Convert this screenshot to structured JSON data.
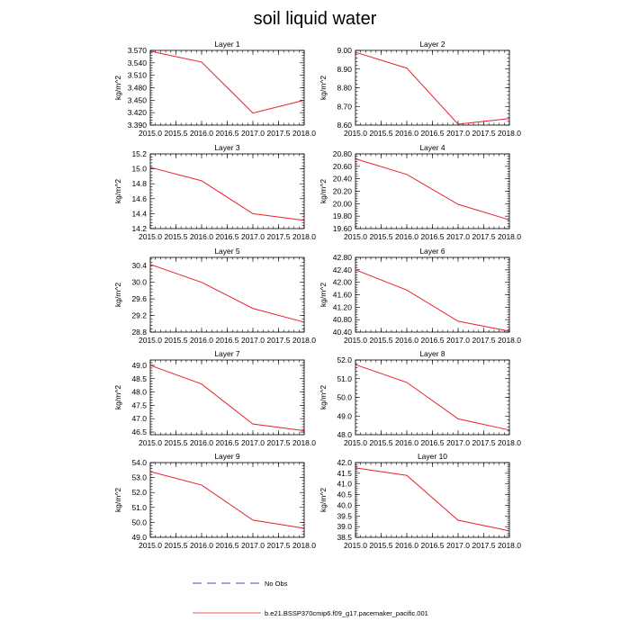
{
  "title": "soil liquid water",
  "colors": {
    "series": "#e8202a",
    "obs": "#1a1a8c",
    "axis": "#000000"
  },
  "legend": {
    "obs_label": "No Obs",
    "series_label": "b.e21.BSSP370cmip6.f09_g17.pacemaker_pacific.001"
  },
  "chart_data": [
    {
      "type": "line",
      "title": "Layer 1",
      "ylabel": "kg/m^2",
      "x": [
        2015.0,
        2016.0,
        2017.0,
        2018.0
      ],
      "y": [
        3.568,
        3.542,
        3.419,
        3.45
      ],
      "xlim": [
        2015.0,
        2018.0
      ],
      "ylim": [
        3.39,
        3.57
      ],
      "xticks": [
        "2015.0",
        "2015.5",
        "2016.0",
        "2016.5",
        "2017.0",
        "2017.5",
        "2018.0"
      ],
      "yticks": [
        "3.390",
        "3.420",
        "3.450",
        "3.480",
        "3.510",
        "3.540",
        "3.570"
      ]
    },
    {
      "type": "line",
      "title": "Layer 2",
      "ylabel": "kg/m^2",
      "x": [
        2015.0,
        2016.0,
        2017.0,
        2018.0
      ],
      "y": [
        8.99,
        8.905,
        8.605,
        8.635
      ],
      "xlim": [
        2015.0,
        2018.0
      ],
      "ylim": [
        8.6,
        9.0
      ],
      "xticks": [
        "2015.0",
        "2015.5",
        "2016.0",
        "2016.5",
        "2017.0",
        "2017.5",
        "2018.0"
      ],
      "yticks": [
        "8.60",
        "8.70",
        "8.80",
        "8.90",
        "9.00"
      ]
    },
    {
      "type": "line",
      "title": "Layer 3",
      "ylabel": "kg/m^2",
      "x": [
        2015.0,
        2016.0,
        2017.0,
        2018.0
      ],
      "y": [
        15.02,
        14.84,
        14.4,
        14.31
      ],
      "xlim": [
        2015.0,
        2018.0
      ],
      "ylim": [
        14.2,
        15.2
      ],
      "xticks": [
        "2015.0",
        "2015.5",
        "2016.0",
        "2016.5",
        "2017.0",
        "2017.5",
        "2018.0"
      ],
      "yticks": [
        "14.2",
        "14.4",
        "14.6",
        "14.8",
        "15.0",
        "15.2"
      ]
    },
    {
      "type": "line",
      "title": "Layer 4",
      "ylabel": "kg/m^2",
      "x": [
        2015.0,
        2016.0,
        2017.0,
        2018.0
      ],
      "y": [
        20.72,
        20.47,
        19.99,
        19.74
      ],
      "xlim": [
        2015.0,
        2018.0
      ],
      "ylim": [
        19.6,
        20.8
      ],
      "xticks": [
        "2015.0",
        "2015.5",
        "2016.0",
        "2016.5",
        "2017.0",
        "2017.5",
        "2018.0"
      ],
      "yticks": [
        "19.60",
        "19.80",
        "20.00",
        "20.20",
        "20.40",
        "20.60",
        "20.80"
      ]
    },
    {
      "type": "line",
      "title": "Layer 5",
      "ylabel": "kg/m^2",
      "x": [
        2015.0,
        2016.0,
        2017.0,
        2018.0
      ],
      "y": [
        30.43,
        30.0,
        29.37,
        29.04
      ],
      "xlim": [
        2015.0,
        2018.0
      ],
      "ylim": [
        28.8,
        30.6
      ],
      "xticks": [
        "2015.0",
        "2015.5",
        "2016.0",
        "2016.5",
        "2017.0",
        "2017.5",
        "2018.0"
      ],
      "yticks": [
        "28.8",
        "29.2",
        "29.6",
        "30.0",
        "30.4"
      ]
    },
    {
      "type": "line",
      "title": "Layer 6",
      "ylabel": "kg/m^2",
      "x": [
        2015.0,
        2016.0,
        2017.0,
        2018.0
      ],
      "y": [
        42.4,
        41.75,
        40.75,
        40.43
      ],
      "xlim": [
        2015.0,
        2018.0
      ],
      "ylim": [
        40.4,
        42.8
      ],
      "xticks": [
        "2015.0",
        "2015.5",
        "2016.0",
        "2016.5",
        "2017.0",
        "2017.5",
        "2018.0"
      ],
      "yticks": [
        "40.40",
        "40.80",
        "41.20",
        "41.60",
        "42.00",
        "42.40",
        "42.80"
      ]
    },
    {
      "type": "line",
      "title": "Layer 7",
      "ylabel": "kg/m^2",
      "x": [
        2015.0,
        2016.0,
        2017.0,
        2018.0
      ],
      "y": [
        49.0,
        48.3,
        46.8,
        46.55
      ],
      "xlim": [
        2015.0,
        2018.0
      ],
      "ylim": [
        46.4,
        49.2
      ],
      "xticks": [
        "2015.0",
        "2015.5",
        "2016.0",
        "2016.5",
        "2017.0",
        "2017.5",
        "2018.0"
      ],
      "yticks": [
        "46.5",
        "47.0",
        "47.5",
        "48.0",
        "48.5",
        "49.0"
      ]
    },
    {
      "type": "line",
      "title": "Layer 8",
      "ylabel": "kg/m^2",
      "x": [
        2015.0,
        2016.0,
        2017.0,
        2018.0
      ],
      "y": [
        51.75,
        50.8,
        48.85,
        48.25
      ],
      "xlim": [
        2015.0,
        2018.0
      ],
      "ylim": [
        48.0,
        52.0
      ],
      "xticks": [
        "2015.0",
        "2015.5",
        "2016.0",
        "2016.5",
        "2017.0",
        "2017.5",
        "2018.0"
      ],
      "yticks": [
        "48.0",
        "49.0",
        "50.0",
        "51.0",
        "52.0"
      ]
    },
    {
      "type": "line",
      "title": "Layer 9",
      "ylabel": "kg/m^2",
      "x": [
        2015.0,
        2016.0,
        2017.0,
        2018.0
      ],
      "y": [
        53.4,
        52.5,
        50.15,
        49.6
      ],
      "xlim": [
        2015.0,
        2018.0
      ],
      "ylim": [
        49.0,
        54.0
      ],
      "xticks": [
        "2015.0",
        "2015.5",
        "2016.0",
        "2016.5",
        "2017.0",
        "2017.5",
        "2018.0"
      ],
      "yticks": [
        "49.0",
        "50.0",
        "51.0",
        "52.0",
        "53.0",
        "54.0"
      ]
    },
    {
      "type": "line",
      "title": "Layer 10",
      "ylabel": "kg/m^2",
      "x": [
        2015.0,
        2016.0,
        2017.0,
        2018.0
      ],
      "y": [
        41.75,
        41.4,
        39.3,
        38.8
      ],
      "xlim": [
        2015.0,
        2018.0
      ],
      "ylim": [
        38.5,
        42.0
      ],
      "xticks": [
        "2015.0",
        "2015.5",
        "2016.0",
        "2016.5",
        "2017.0",
        "2017.5",
        "2018.0"
      ],
      "yticks": [
        "38.5",
        "39.0",
        "39.5",
        "40.0",
        "40.5",
        "41.0",
        "41.5",
        "42.0"
      ]
    }
  ]
}
